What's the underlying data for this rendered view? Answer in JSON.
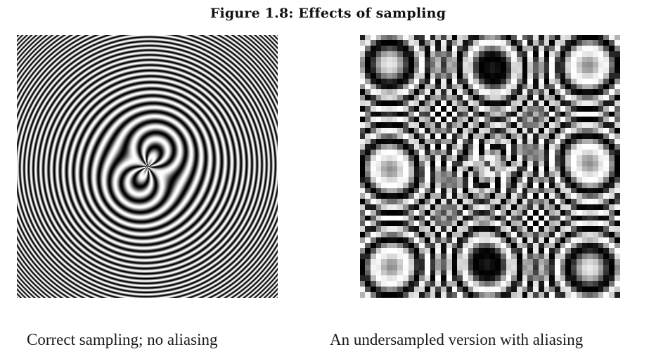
{
  "figure": {
    "title": "Figure 1.8: Effects of sampling"
  },
  "panels": [
    {
      "caption": "Correct sampling; no aliasing",
      "sampling": "full",
      "colors": {
        "dark": "#000000",
        "light": "#ffffff"
      }
    },
    {
      "caption": "An undersampled version with aliasing",
      "sampling": "undersampled",
      "colors": {
        "dark": "#000000",
        "light": "#ffffff"
      }
    }
  ]
}
